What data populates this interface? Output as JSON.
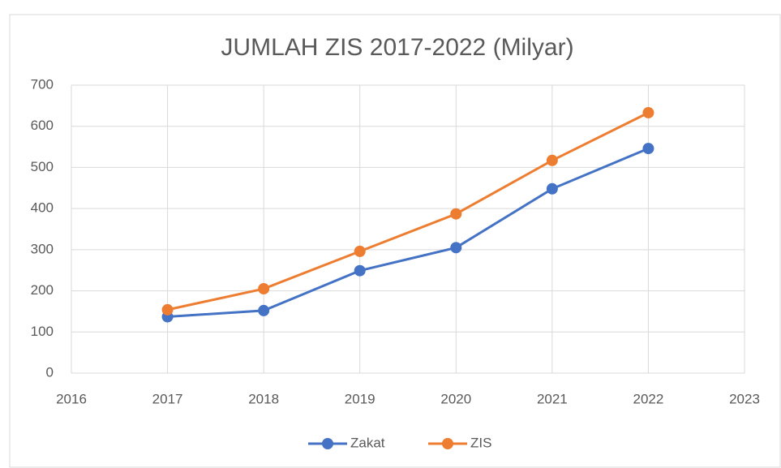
{
  "chart_data": {
    "type": "line",
    "title": "JUMLAH ZIS 2017-2022 (Milyar)",
    "x": [
      2017,
      2018,
      2019,
      2020,
      2021,
      2022
    ],
    "series": [
      {
        "name": "Zakat",
        "color": "#4472c4",
        "values": [
          137,
          152,
          249,
          305,
          448,
          546
        ]
      },
      {
        "name": "ZIS",
        "color": "#ed7d31",
        "values": [
          154,
          205,
          296,
          387,
          517,
          633
        ]
      }
    ],
    "xlim": [
      2016,
      2023
    ],
    "xticks": [
      2016,
      2017,
      2018,
      2019,
      2020,
      2021,
      2022,
      2023
    ],
    "ylim": [
      0,
      700
    ],
    "yticks": [
      0,
      100,
      200,
      300,
      400,
      500,
      600,
      700
    ],
    "grid": true,
    "legend": "bottom"
  }
}
